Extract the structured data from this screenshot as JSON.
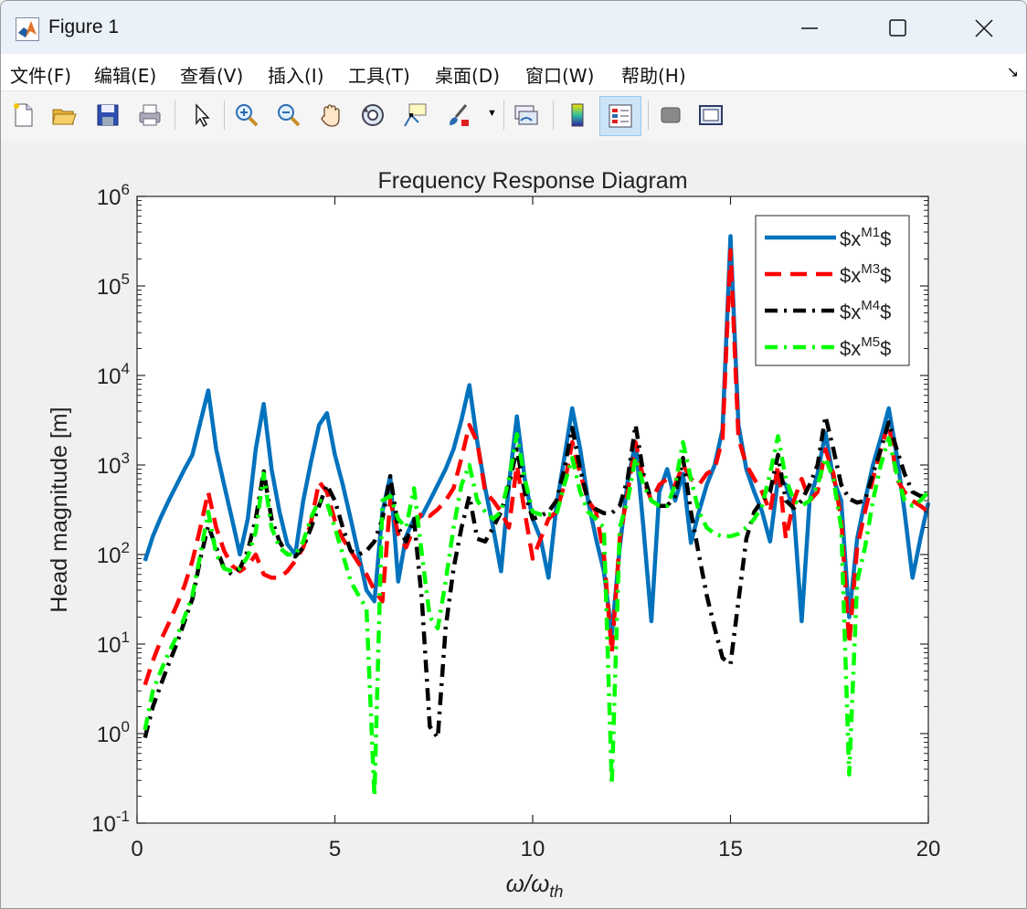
{
  "window": {
    "title": "Figure 1",
    "menus": [
      "文件(F)",
      "编辑(E)",
      "查看(V)",
      "插入(I)",
      "工具(T)",
      "桌面(D)",
      "窗口(W)",
      "帮助(H)"
    ],
    "toolbar_icons": [
      "new-figure-icon",
      "open-file-icon",
      "save-icon",
      "print-icon",
      "select-arrow-icon",
      "zoom-in-icon",
      "zoom-out-icon",
      "pan-hand-icon",
      "rotate-3d-icon",
      "data-tip-icon",
      "brush-icon",
      "link-plot-icon",
      "colorbar-icon",
      "legend-icon",
      "hide-plot-tools-icon",
      "show-plot-tools-icon"
    ]
  },
  "chart_data": {
    "type": "line",
    "title": "Frequency Response Diagram",
    "xlabel": "ω/ω",
    "xlabel_sub": "th",
    "ylabel": "Head magnitude [m]",
    "xlim": [
      0,
      20
    ],
    "ylim": [
      0.1,
      1000000
    ],
    "yscale": "log",
    "x_ticks": [
      0,
      5,
      10,
      15,
      20
    ],
    "y_tick_exponents": [
      -1,
      0,
      1,
      2,
      3,
      4,
      5,
      6
    ],
    "grid": false,
    "legend_position": "top-right",
    "x": [
      0.2,
      0.4,
      0.6,
      0.8,
      1.0,
      1.2,
      1.4,
      1.6,
      1.8,
      2.0,
      2.2,
      2.4,
      2.6,
      2.8,
      3.0,
      3.2,
      3.4,
      3.6,
      3.8,
      4.0,
      4.2,
      4.4,
      4.6,
      4.8,
      5.0,
      5.2,
      5.4,
      5.6,
      5.8,
      6.0,
      6.2,
      6.4,
      6.6,
      6.8,
      7.0,
      7.2,
      7.4,
      7.6,
      7.8,
      8.0,
      8.2,
      8.4,
      8.6,
      8.8,
      9.0,
      9.2,
      9.4,
      9.6,
      9.8,
      10.0,
      10.2,
      10.4,
      10.6,
      10.8,
      11.0,
      11.2,
      11.4,
      11.6,
      11.8,
      12.0,
      12.2,
      12.4,
      12.6,
      12.8,
      13.0,
      13.2,
      13.4,
      13.6,
      13.8,
      14.0,
      14.2,
      14.4,
      14.6,
      14.8,
      15.0,
      15.2,
      15.4,
      15.6,
      15.8,
      16.0,
      16.2,
      16.4,
      16.6,
      16.8,
      17.0,
      17.2,
      17.4,
      17.6,
      17.8,
      18.0,
      18.2,
      18.4,
      18.6,
      18.8,
      19.0,
      19.2,
      19.4,
      19.6,
      19.8,
      20.0
    ],
    "series": [
      {
        "name": "$x^{M1}$",
        "name_base": "$x",
        "name_sup": "M1",
        "name_end": "$",
        "color": "#0072bd",
        "dash": "solid",
        "values": [
          85,
          160,
          260,
          400,
          600,
          900,
          1300,
          3000,
          6800,
          1500,
          600,
          250,
          100,
          250,
          1500,
          4800,
          900,
          300,
          130,
          100,
          400,
          1100,
          2800,
          3800,
          1300,
          600,
          250,
          100,
          40,
          30,
          300,
          750,
          50,
          160,
          250,
          270,
          400,
          600,
          900,
          1500,
          3200,
          7800,
          1800,
          550,
          200,
          65,
          600,
          3500,
          700,
          250,
          150,
          55,
          350,
          1200,
          4300,
          1500,
          400,
          150,
          65,
          13,
          120,
          650,
          1800,
          200,
          18,
          500,
          900,
          400,
          800,
          135,
          300,
          600,
          1000,
          2500,
          360000,
          2800,
          900,
          500,
          300,
          140,
          700,
          600,
          300,
          18,
          400,
          800,
          2300,
          700,
          400,
          20,
          150,
          400,
          1000,
          2000,
          4300,
          1300,
          300,
          55,
          150,
          380
        ]
      },
      {
        "name": "$x^{M3}$",
        "name_base": "$x",
        "name_sup": "M3",
        "name_end": "$",
        "color": "#ff0000",
        "dash": "dashed",
        "values": [
          3.5,
          6.5,
          11,
          17,
          27,
          45,
          85,
          200,
          500,
          200,
          110,
          75,
          65,
          75,
          100,
          60,
          55,
          55,
          65,
          85,
          120,
          230,
          650,
          500,
          240,
          150,
          110,
          80,
          60,
          40,
          30,
          400,
          170,
          120,
          200,
          300,
          270,
          320,
          400,
          550,
          1200,
          2800,
          1800,
          500,
          400,
          300,
          200,
          1000,
          300,
          90,
          150,
          250,
          300,
          600,
          1800,
          800,
          400,
          300,
          100,
          8,
          150,
          500,
          1800,
          700,
          400,
          600,
          700,
          600,
          1000,
          700,
          600,
          800,
          900,
          2000,
          250000,
          2000,
          1000,
          700,
          500,
          300,
          1000,
          150,
          400,
          700,
          400,
          500,
          1500,
          800,
          250,
          10,
          120,
          300,
          700,
          1500,
          3000,
          700,
          500,
          400,
          350,
          300
        ]
      },
      {
        "name": "$x^{M4}$",
        "name_base": "$x",
        "name_sup": "M4",
        "name_end": "$",
        "color": "#000000",
        "dash": "dashdot",
        "values": [
          0.9,
          2,
          3.5,
          6,
          10,
          18,
          32,
          90,
          210,
          120,
          70,
          60,
          70,
          110,
          250,
          850,
          250,
          140,
          100,
          95,
          120,
          200,
          350,
          600,
          400,
          200,
          110,
          100,
          110,
          140,
          250,
          750,
          200,
          140,
          250,
          30,
          1.2,
          0.9,
          15,
          70,
          200,
          450,
          150,
          140,
          200,
          300,
          600,
          1500,
          500,
          250,
          270,
          300,
          400,
          900,
          2600,
          900,
          400,
          320,
          290,
          290,
          350,
          700,
          2800,
          800,
          400,
          350,
          350,
          450,
          1200,
          300,
          100,
          35,
          15,
          7,
          6,
          30,
          150,
          300,
          400,
          500,
          1300,
          400,
          330,
          400,
          600,
          1000,
          3500,
          1500,
          600,
          420,
          380,
          400,
          800,
          1500,
          3000,
          1500,
          800,
          500,
          450,
          450
        ]
      },
      {
        "name": "$x^{M5}$",
        "name_base": "$x",
        "name_sup": "M5",
        "name_end": "$",
        "color": "#00ff00",
        "dash": "dashdot",
        "values": [
          1.1,
          3,
          5,
          8,
          12,
          20,
          35,
          100,
          300,
          100,
          70,
          65,
          70,
          95,
          180,
          800,
          200,
          120,
          100,
          100,
          140,
          260,
          400,
          380,
          200,
          100,
          50,
          35,
          25,
          0.2,
          400,
          450,
          250,
          200,
          550,
          100,
          20,
          15,
          50,
          200,
          600,
          1000,
          400,
          300,
          250,
          300,
          700,
          2200,
          700,
          300,
          280,
          280,
          280,
          600,
          1200,
          500,
          300,
          250,
          200,
          0.27,
          200,
          400,
          1200,
          600,
          400,
          350,
          350,
          600,
          1800,
          700,
          300,
          200,
          170,
          160,
          160,
          170,
          200,
          250,
          350,
          800,
          2100,
          700,
          400,
          350,
          400,
          600,
          1200,
          700,
          200,
          0.35,
          50,
          120,
          400,
          1000,
          2000,
          800,
          400,
          350,
          400,
          500
        ]
      }
    ]
  }
}
